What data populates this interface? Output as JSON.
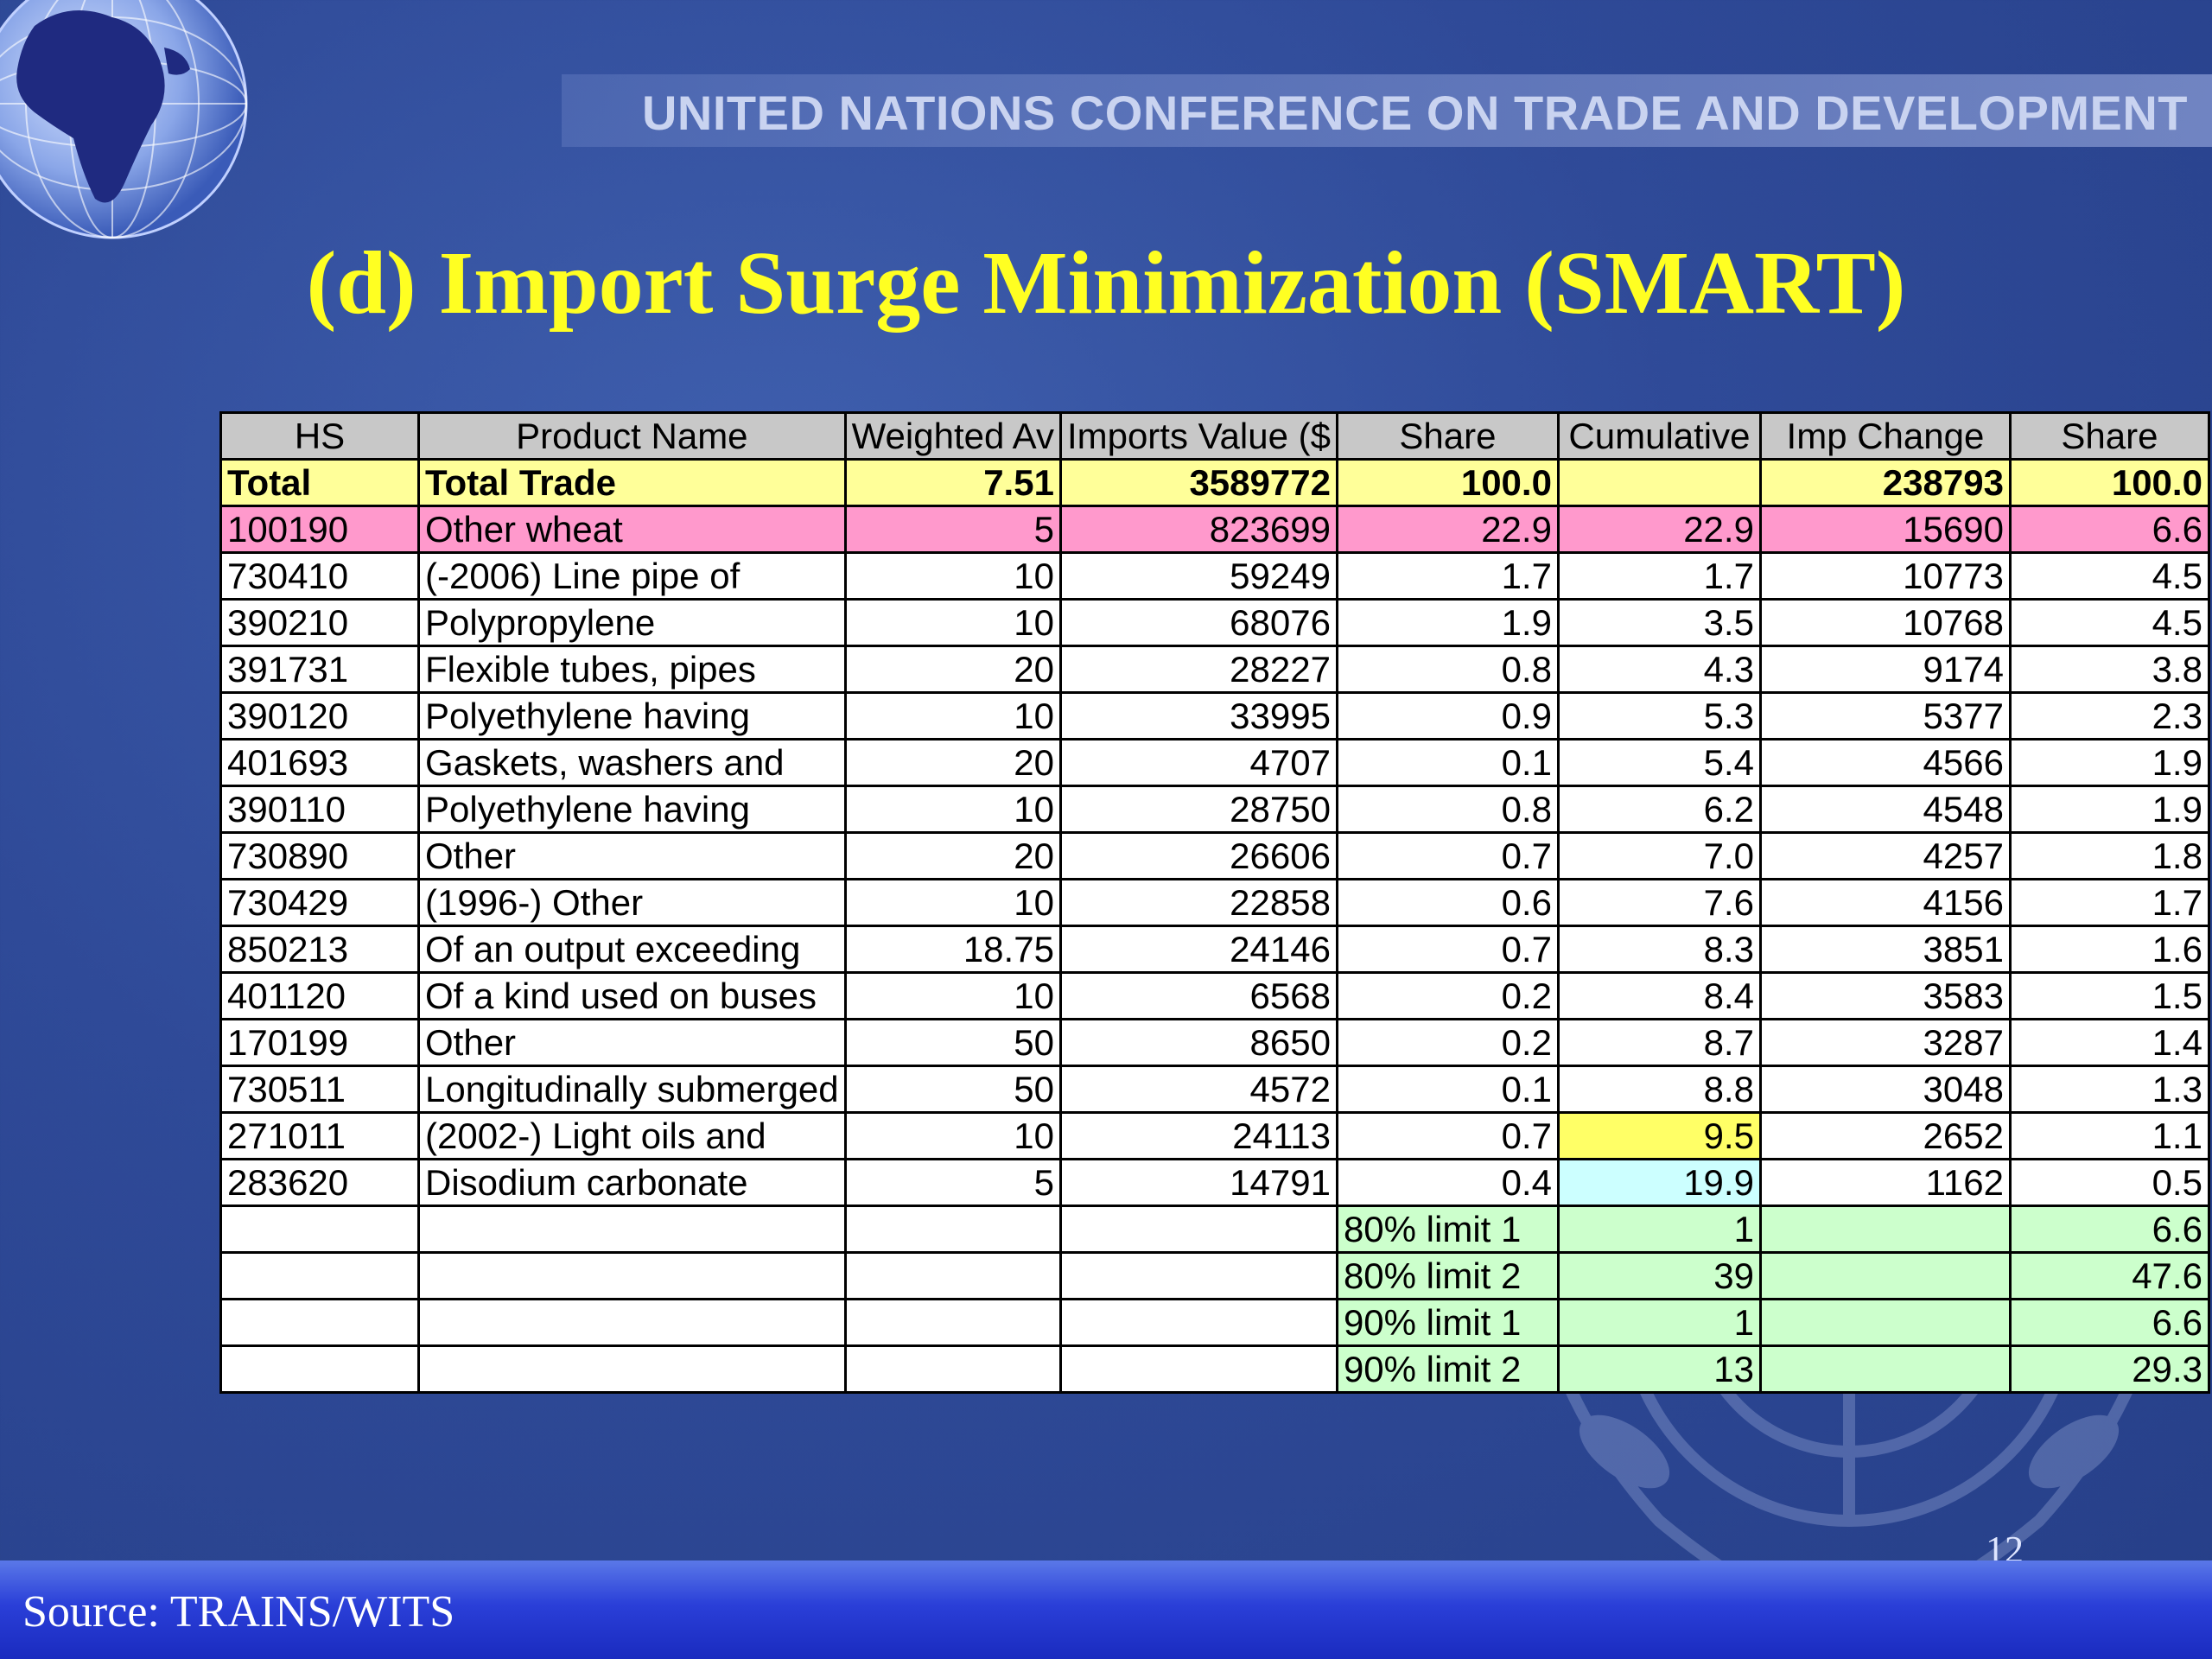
{
  "header": {
    "org": "UNITED NATIONS CONFERENCE ON TRADE AND DEVELOPMENT"
  },
  "slide": {
    "title": "(d) Import Surge Minimization (SMART)",
    "page_number": "12",
    "source": "Source: TRAINS/WITS"
  },
  "table": {
    "columns": [
      "HS",
      "Product Name",
      "Weighted Av",
      "Imports Value ($",
      "Share",
      "Cumulative",
      "Imp Change",
      "Share"
    ],
    "total": [
      "Total",
      "Total Trade",
      "7.51",
      "3589772",
      "100.0",
      "",
      "238793",
      "100.0"
    ],
    "rows": [
      [
        "100190",
        "Other wheat",
        "5",
        "823699",
        "22.9",
        "22.9",
        "15690",
        "6.6"
      ],
      [
        "730410",
        "(-2006) Line pipe of",
        "10",
        "59249",
        "1.7",
        "1.7",
        "10773",
        "4.5"
      ],
      [
        "390210",
        "Polypropylene",
        "10",
        "68076",
        "1.9",
        "3.5",
        "10768",
        "4.5"
      ],
      [
        "391731",
        "Flexible tubes, pipes",
        "20",
        "28227",
        "0.8",
        "4.3",
        "9174",
        "3.8"
      ],
      [
        "390120",
        "Polyethylene having",
        "10",
        "33995",
        "0.9",
        "5.3",
        "5377",
        "2.3"
      ],
      [
        "401693",
        "Gaskets, washers and",
        "20",
        "4707",
        "0.1",
        "5.4",
        "4566",
        "1.9"
      ],
      [
        "390110",
        "Polyethylene having",
        "10",
        "28750",
        "0.8",
        "6.2",
        "4548",
        "1.9"
      ],
      [
        "730890",
        "Other",
        "20",
        "26606",
        "0.7",
        "7.0",
        "4257",
        "1.8"
      ],
      [
        "730429",
        "(1996-) Other",
        "10",
        "22858",
        "0.6",
        "7.6",
        "4156",
        "1.7"
      ],
      [
        "850213",
        "Of an output exceeding",
        "18.75",
        "24146",
        "0.7",
        "8.3",
        "3851",
        "1.6"
      ],
      [
        "401120",
        "Of a kind used on buses",
        "10",
        "6568",
        "0.2",
        "8.4",
        "3583",
        "1.5"
      ],
      [
        "170199",
        "Other",
        "50",
        "8650",
        "0.2",
        "8.7",
        "3287",
        "1.4"
      ],
      [
        "730511",
        "Longitudinally submerged",
        "50",
        "4572",
        "0.1",
        "8.8",
        "3048",
        "1.3"
      ],
      [
        "271011",
        "(2002-) Light oils and",
        "10",
        "24113",
        "0.7",
        "9.5",
        "2652",
        "1.1"
      ],
      [
        "283620",
        "Disodium carbonate",
        "5",
        "14791",
        "0.4",
        "19.9",
        "1162",
        "0.5"
      ]
    ],
    "limits": [
      [
        "80% limit 1",
        "1",
        "6.6"
      ],
      [
        "80% limit 2",
        "39",
        "47.6"
      ],
      [
        "90% limit 1",
        "1",
        "6.6"
      ],
      [
        "90% limit 2",
        "13",
        "29.3"
      ]
    ]
  },
  "colors": {
    "title": "#ffff22",
    "total_row": "#ffff99",
    "highlight_row": "#ff99cc",
    "limit_cells": "#ccffcc",
    "cum_yellow": "#ffff66",
    "cum_cyan": "#ccffff"
  }
}
